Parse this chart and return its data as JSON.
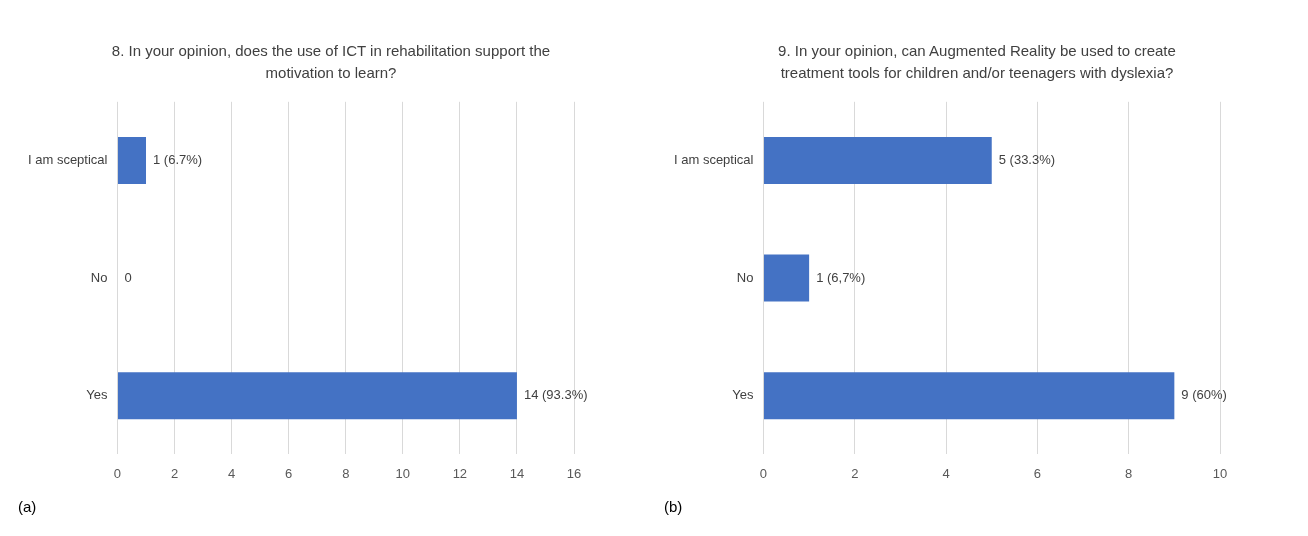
{
  "chart_data": [
    {
      "type": "bar",
      "orientation": "horizontal",
      "title": "8. In your opinion, does the use of ICT in rehabilitation support the motivation to learn?",
      "categories": [
        "I am sceptical",
        "No",
        "Yes"
      ],
      "values": [
        1,
        0,
        14
      ],
      "value_labels": [
        "1 (6.7%)",
        "0",
        "14 (93.3%)"
      ],
      "color": "#4472c4",
      "xlim": [
        0,
        16
      ],
      "xticks": [
        0,
        2,
        4,
        6,
        8,
        10,
        12,
        14,
        16
      ],
      "grid": "x",
      "annotations": [
        "(a)"
      ]
    },
    {
      "type": "bar",
      "orientation": "horizontal",
      "title": "9. In your opinion, can Augmented Reality be used to create treatment tools for children and/or teenagers with dyslexia?",
      "categories": [
        "I am sceptical",
        "No",
        "Yes"
      ],
      "values": [
        5,
        1,
        9
      ],
      "value_labels": [
        "5 (33.3%)",
        "1 (6,7%)",
        "9 (60%)"
      ],
      "color": "#4472c4",
      "xlim": [
        0,
        10
      ],
      "xticks": [
        0,
        2,
        4,
        6,
        8,
        10
      ],
      "grid": "x",
      "annotations": [
        "(b)"
      ]
    }
  ]
}
